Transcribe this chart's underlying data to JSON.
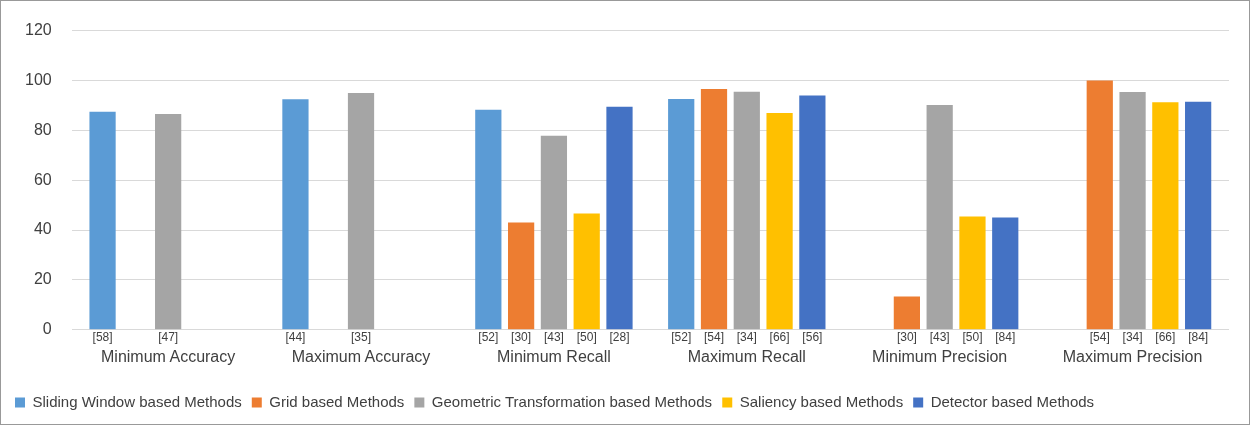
{
  "chart_data": {
    "type": "bar",
    "categories": [
      "Minimum Accuracy",
      "Maximum Accuracy",
      "Minimum Recall",
      "Maximum Recall",
      "Minimum Precision",
      "Maximum Precision"
    ],
    "series": [
      {
        "name": "Sliding Window based Methods",
        "color": "#5b9bd5",
        "values": [
          87.5,
          92.5,
          88.3,
          92.6,
          null,
          null
        ]
      },
      {
        "name": "Grid based Methods",
        "color": "#ed7d31",
        "values": [
          null,
          null,
          43,
          96.6,
          13.4,
          100
        ]
      },
      {
        "name": "Geometric Transformation based Methods",
        "color": "#a5a5a5",
        "values": [
          86.6,
          95,
          77.8,
          95.5,
          90.2,
          95.4
        ]
      },
      {
        "name": "Saliency based Methods",
        "color": "#ffc000",
        "values": [
          null,
          null,
          46.6,
          87,
          45.4,
          91.3
        ]
      },
      {
        "name": "Detector based Methods",
        "color": "#4472c4",
        "values": [
          null,
          null,
          89.5,
          94,
          45,
          91.5
        ]
      }
    ],
    "ylim": [
      0,
      120
    ],
    "yticks": [
      0,
      20,
      40,
      60,
      80,
      100,
      120
    ],
    "grid": "y",
    "legend": "bottom",
    "annotations": [
      "[58]",
      "[47]",
      "[44]",
      "[35]",
      "[52]",
      "[30]",
      "[43]",
      "[50]",
      "[28]",
      "[52]",
      "[54]",
      "[34]",
      "[66]",
      "[56]",
      "[30]",
      "[43]",
      "[50]",
      "[84]",
      "[54]",
      "[34]",
      "[66]",
      "[84]"
    ]
  }
}
